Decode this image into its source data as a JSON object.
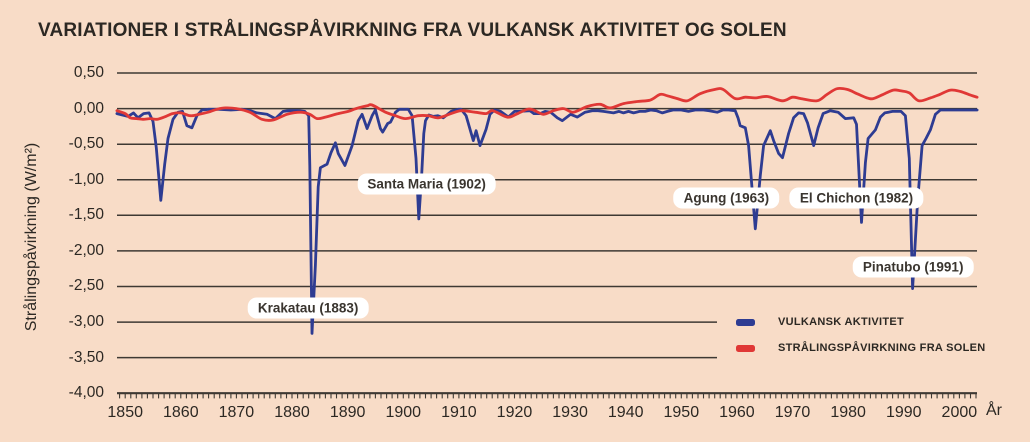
{
  "background": "#f8dcc7",
  "text_color": "#2c2823",
  "grid_color": "#3e3933",
  "chart_data": {
    "type": "line",
    "title": "VARIATIONER I STRÅLINGSPÅVIRKNING FRA VULKANSK AKTIVITET OG SOLEN",
    "ylabel": "Strålingspåvirkning (W/m²)",
    "xlabel": "År",
    "xlim": [
      1848,
      2004
    ],
    "ylim": [
      -4.0,
      0.5
    ],
    "grid": true,
    "legend_position": "inside-lower-right",
    "gridlines_shortened_for_legend": [
      -3.0,
      -3.5
    ],
    "y_ticks": [
      {
        "value": 0.5,
        "label": "0,50"
      },
      {
        "value": 0.0,
        "label": "0,00"
      },
      {
        "value": -0.5,
        "label": "-0,50"
      },
      {
        "value": -1.0,
        "label": "-1,00"
      },
      {
        "value": -1.5,
        "label": "-1,50"
      },
      {
        "value": -2.0,
        "label": "-2,00"
      },
      {
        "value": -2.5,
        "label": "-2,50"
      },
      {
        "value": -3.0,
        "label": "-3,00"
      },
      {
        "value": -3.5,
        "label": "-3,50"
      },
      {
        "value": -4.0,
        "label": "-4,00"
      }
    ],
    "x_ticks": [
      {
        "value": 1850,
        "label": "1850"
      },
      {
        "value": 1860,
        "label": "1860"
      },
      {
        "value": 1870,
        "label": "1870"
      },
      {
        "value": 1880,
        "label": "1880"
      },
      {
        "value": 1890,
        "label": "1890"
      },
      {
        "value": 1900,
        "label": "1900"
      },
      {
        "value": 1910,
        "label": "1910"
      },
      {
        "value": 1920,
        "label": "1920"
      },
      {
        "value": 1930,
        "label": "1930"
      },
      {
        "value": 1940,
        "label": "1940"
      },
      {
        "value": 1950,
        "label": "1950"
      },
      {
        "value": 1960,
        "label": "1960"
      },
      {
        "value": 1970,
        "label": "1970"
      },
      {
        "value": 1980,
        "label": "1980"
      },
      {
        "value": 1990,
        "label": "1990"
      },
      {
        "value": 2000,
        "label": "2000"
      }
    ],
    "minor_ticks": {
      "start": 1849,
      "end": 2003,
      "step": 1
    },
    "annotations": [
      {
        "label": "Krakatau (1883)",
        "year": 1882.9,
        "value": -2.8
      },
      {
        "label": "Santa Maria (1902)",
        "year": 1904.2,
        "value": -1.06
      },
      {
        "label": "Agung (1963)",
        "year": 1958.1,
        "value": -1.26
      },
      {
        "label": "El Chichon (1982)",
        "year": 1981.5,
        "value": -1.26
      },
      {
        "label": "Pinatubo (1991)",
        "year": 1991.7,
        "value": -2.23
      }
    ],
    "series": [
      {
        "name": "VULKANSK AKTIVITET",
        "color": "#2e3c92",
        "style": "jagged",
        "points": [
          [
            1848.5,
            -0.07
          ],
          [
            1849.5,
            -0.09
          ],
          [
            1850.5,
            -0.11
          ],
          [
            1851.5,
            -0.06
          ],
          [
            1852.3,
            -0.13
          ],
          [
            1853.3,
            -0.07
          ],
          [
            1854.3,
            -0.06
          ],
          [
            1855.0,
            -0.18
          ],
          [
            1855.6,
            -0.55
          ],
          [
            1856.4,
            -1.29
          ],
          [
            1857.1,
            -0.78
          ],
          [
            1857.7,
            -0.42
          ],
          [
            1858.6,
            -0.15
          ],
          [
            1859.5,
            -0.05
          ],
          [
            1860.3,
            -0.04
          ],
          [
            1861.1,
            -0.24
          ],
          [
            1862.0,
            -0.27
          ],
          [
            1862.9,
            -0.1
          ],
          [
            1863.8,
            -0.02
          ],
          [
            1865.0,
            -0.01
          ],
          [
            1867.0,
            -0.01
          ],
          [
            1869.0,
            -0.02
          ],
          [
            1871.0,
            -0.01
          ],
          [
            1872.5,
            -0.03
          ],
          [
            1873.7,
            -0.06
          ],
          [
            1875.5,
            -0.08
          ],
          [
            1877.0,
            -0.14
          ],
          [
            1878.4,
            -0.04
          ],
          [
            1879.5,
            -0.03
          ],
          [
            1881.0,
            -0.03
          ],
          [
            1882.3,
            -0.04
          ],
          [
            1883.0,
            -0.1
          ],
          [
            1883.2,
            -0.8
          ],
          [
            1883.6,
            -3.16
          ],
          [
            1884.2,
            -2.2
          ],
          [
            1884.7,
            -1.1
          ],
          [
            1885.1,
            -0.83
          ],
          [
            1886.3,
            -0.78
          ],
          [
            1887.0,
            -0.62
          ],
          [
            1887.8,
            -0.48
          ],
          [
            1888.3,
            -0.63
          ],
          [
            1889.5,
            -0.8
          ],
          [
            1890.8,
            -0.52
          ],
          [
            1891.9,
            -0.17
          ],
          [
            1892.6,
            -0.08
          ],
          [
            1893.5,
            -0.28
          ],
          [
            1894.4,
            -0.1
          ],
          [
            1895.0,
            -0.02
          ],
          [
            1895.9,
            -0.28
          ],
          [
            1896.3,
            -0.33
          ],
          [
            1897.2,
            -0.21
          ],
          [
            1897.7,
            -0.19
          ],
          [
            1898.6,
            -0.05
          ],
          [
            1899.3,
            -0.01
          ],
          [
            1900.9,
            -0.01
          ],
          [
            1901.6,
            -0.1
          ],
          [
            1902.3,
            -0.7
          ],
          [
            1902.8,
            -1.55
          ],
          [
            1903.3,
            -0.95
          ],
          [
            1903.7,
            -0.35
          ],
          [
            1904.0,
            -0.17
          ],
          [
            1904.6,
            -0.09
          ],
          [
            1905.4,
            -0.11
          ],
          [
            1906.2,
            -0.1
          ],
          [
            1907.2,
            -0.13
          ],
          [
            1908.6,
            -0.04
          ],
          [
            1909.9,
            -0.01
          ],
          [
            1910.4,
            -0.01
          ],
          [
            1911.3,
            -0.1
          ],
          [
            1912.6,
            -0.45
          ],
          [
            1913.1,
            -0.31
          ],
          [
            1913.8,
            -0.52
          ],
          [
            1914.9,
            -0.29
          ],
          [
            1915.6,
            -0.08
          ],
          [
            1916.4,
            -0.02
          ],
          [
            1917.5,
            -0.04
          ],
          [
            1918.9,
            -0.12
          ],
          [
            1920.0,
            -0.04
          ],
          [
            1921.0,
            -0.04
          ],
          [
            1922.8,
            -0.03
          ],
          [
            1923.5,
            -0.07
          ],
          [
            1924.6,
            -0.07
          ],
          [
            1925.5,
            -0.04
          ],
          [
            1926.5,
            -0.05
          ],
          [
            1927.7,
            -0.13
          ],
          [
            1928.6,
            -0.17
          ],
          [
            1930.1,
            -0.08
          ],
          [
            1931.3,
            -0.12
          ],
          [
            1932.7,
            -0.05
          ],
          [
            1934.0,
            -0.03
          ],
          [
            1935.0,
            -0.03
          ],
          [
            1936.0,
            -0.04
          ],
          [
            1937.8,
            -0.06
          ],
          [
            1938.8,
            -0.04
          ],
          [
            1939.6,
            -0.06
          ],
          [
            1940.5,
            -0.04
          ],
          [
            1941.4,
            -0.06
          ],
          [
            1942.5,
            -0.04
          ],
          [
            1943.5,
            -0.04
          ],
          [
            1944.5,
            -0.02
          ],
          [
            1945.5,
            -0.03
          ],
          [
            1946.6,
            -0.06
          ],
          [
            1947.5,
            -0.04
          ],
          [
            1948.5,
            -0.02
          ],
          [
            1950.0,
            -0.02
          ],
          [
            1951.3,
            -0.04
          ],
          [
            1952.5,
            -0.02
          ],
          [
            1954.0,
            -0.02
          ],
          [
            1955.0,
            -0.03
          ],
          [
            1956.5,
            -0.05
          ],
          [
            1957.5,
            -0.02
          ],
          [
            1958.5,
            -0.02
          ],
          [
            1959.7,
            -0.03
          ],
          [
            1960.2,
            -0.13
          ],
          [
            1960.6,
            -0.24
          ],
          [
            1961.5,
            -0.27
          ],
          [
            1962.1,
            -0.52
          ],
          [
            1963.3,
            -1.69
          ],
          [
            1964.2,
            -0.94
          ],
          [
            1964.8,
            -0.52
          ],
          [
            1966.0,
            -0.31
          ],
          [
            1966.6,
            -0.45
          ],
          [
            1967.5,
            -0.63
          ],
          [
            1968.2,
            -0.69
          ],
          [
            1969.3,
            -0.35
          ],
          [
            1970.2,
            -0.13
          ],
          [
            1971.1,
            -0.06
          ],
          [
            1972.0,
            -0.07
          ],
          [
            1972.7,
            -0.2
          ],
          [
            1973.8,
            -0.52
          ],
          [
            1974.6,
            -0.27
          ],
          [
            1975.5,
            -0.07
          ],
          [
            1976.8,
            -0.03
          ],
          [
            1978.2,
            -0.05
          ],
          [
            1979.5,
            -0.14
          ],
          [
            1981.0,
            -0.13
          ],
          [
            1981.5,
            -0.22
          ],
          [
            1982.4,
            -1.6
          ],
          [
            1983.1,
            -0.76
          ],
          [
            1983.6,
            -0.42
          ],
          [
            1984.9,
            -0.3
          ],
          [
            1985.8,
            -0.12
          ],
          [
            1986.6,
            -0.06
          ],
          [
            1988.0,
            -0.04
          ],
          [
            1989.5,
            -0.04
          ],
          [
            1990.3,
            -0.1
          ],
          [
            1991.0,
            -0.7
          ],
          [
            1991.6,
            -2.53
          ],
          [
            1992.5,
            -1.3
          ],
          [
            1993.3,
            -0.52
          ],
          [
            1994.0,
            -0.42
          ],
          [
            1994.8,
            -0.3
          ],
          [
            1995.7,
            -0.08
          ],
          [
            1996.6,
            -0.02
          ],
          [
            1998.0,
            -0.02
          ],
          [
            2000.0,
            -0.02
          ],
          [
            2002.0,
            -0.02
          ],
          [
            2003.2,
            -0.02
          ]
        ]
      },
      {
        "name": "STRÅLINGSPÅVIRKNING FRA SOLEN",
        "color": "#e03836",
        "style": "smooth",
        "points": [
          [
            1848.5,
            -0.03
          ],
          [
            1850.0,
            -0.07
          ],
          [
            1850.9,
            -0.13
          ],
          [
            1852.0,
            -0.14
          ],
          [
            1853.2,
            -0.15
          ],
          [
            1854.5,
            -0.14
          ],
          [
            1855.7,
            -0.15
          ],
          [
            1857.0,
            -0.12
          ],
          [
            1858.5,
            -0.07
          ],
          [
            1860.0,
            -0.06
          ],
          [
            1861.7,
            -0.1
          ],
          [
            1863.3,
            -0.08
          ],
          [
            1864.9,
            -0.05
          ],
          [
            1866.5,
            -0.01
          ],
          [
            1868.0,
            0.01
          ],
          [
            1870.0,
            0.0
          ],
          [
            1872.4,
            -0.05
          ],
          [
            1874.6,
            -0.15
          ],
          [
            1876.6,
            -0.16
          ],
          [
            1879.1,
            -0.08
          ],
          [
            1881.5,
            -0.05
          ],
          [
            1883.2,
            -0.08
          ],
          [
            1884.5,
            -0.14
          ],
          [
            1886.0,
            -0.12
          ],
          [
            1888.3,
            -0.07
          ],
          [
            1890.1,
            -0.04
          ],
          [
            1891.5,
            0.0
          ],
          [
            1893.5,
            0.04
          ],
          [
            1894.4,
            0.05
          ],
          [
            1896.8,
            -0.05
          ],
          [
            1898.6,
            -0.1
          ],
          [
            1900.4,
            -0.14
          ],
          [
            1902.7,
            -0.1
          ],
          [
            1904.5,
            -0.1
          ],
          [
            1906.3,
            -0.13
          ],
          [
            1908.6,
            -0.07
          ],
          [
            1910.4,
            -0.03
          ],
          [
            1912.9,
            -0.05
          ],
          [
            1914.9,
            -0.07
          ],
          [
            1916.1,
            -0.03
          ],
          [
            1918.7,
            -0.12
          ],
          [
            1920.3,
            -0.08
          ],
          [
            1922.3,
            -0.01
          ],
          [
            1923.4,
            -0.02
          ],
          [
            1925.2,
            -0.08
          ],
          [
            1927.0,
            -0.03
          ],
          [
            1928.8,
            0.0
          ],
          [
            1930.6,
            -0.05
          ],
          [
            1933.1,
            0.03
          ],
          [
            1935.4,
            0.06
          ],
          [
            1937.2,
            0.01
          ],
          [
            1939.6,
            0.07
          ],
          [
            1942.1,
            0.1
          ],
          [
            1944.4,
            0.12
          ],
          [
            1946.2,
            0.2
          ],
          [
            1947.5,
            0.18
          ],
          [
            1949.3,
            0.14
          ],
          [
            1951.1,
            0.11
          ],
          [
            1953.4,
            0.21
          ],
          [
            1956.1,
            0.27
          ],
          [
            1957.5,
            0.27
          ],
          [
            1959.7,
            0.14
          ],
          [
            1961.5,
            0.16
          ],
          [
            1963.3,
            0.15
          ],
          [
            1965.5,
            0.17
          ],
          [
            1968.2,
            0.11
          ],
          [
            1970.0,
            0.16
          ],
          [
            1971.5,
            0.14
          ],
          [
            1974.4,
            0.11
          ],
          [
            1976.2,
            0.2
          ],
          [
            1978.0,
            0.28
          ],
          [
            1979.8,
            0.27
          ],
          [
            1981.6,
            0.21
          ],
          [
            1983.4,
            0.15
          ],
          [
            1984.5,
            0.14
          ],
          [
            1986.3,
            0.2
          ],
          [
            1988.1,
            0.26
          ],
          [
            1989.4,
            0.25
          ],
          [
            1991.0,
            0.22
          ],
          [
            1992.7,
            0.11
          ],
          [
            1994.8,
            0.15
          ],
          [
            1996.5,
            0.2
          ],
          [
            1998.4,
            0.26
          ],
          [
            2000.2,
            0.24
          ],
          [
            2002.0,
            0.19
          ],
          [
            2003.2,
            0.16
          ]
        ]
      }
    ]
  }
}
